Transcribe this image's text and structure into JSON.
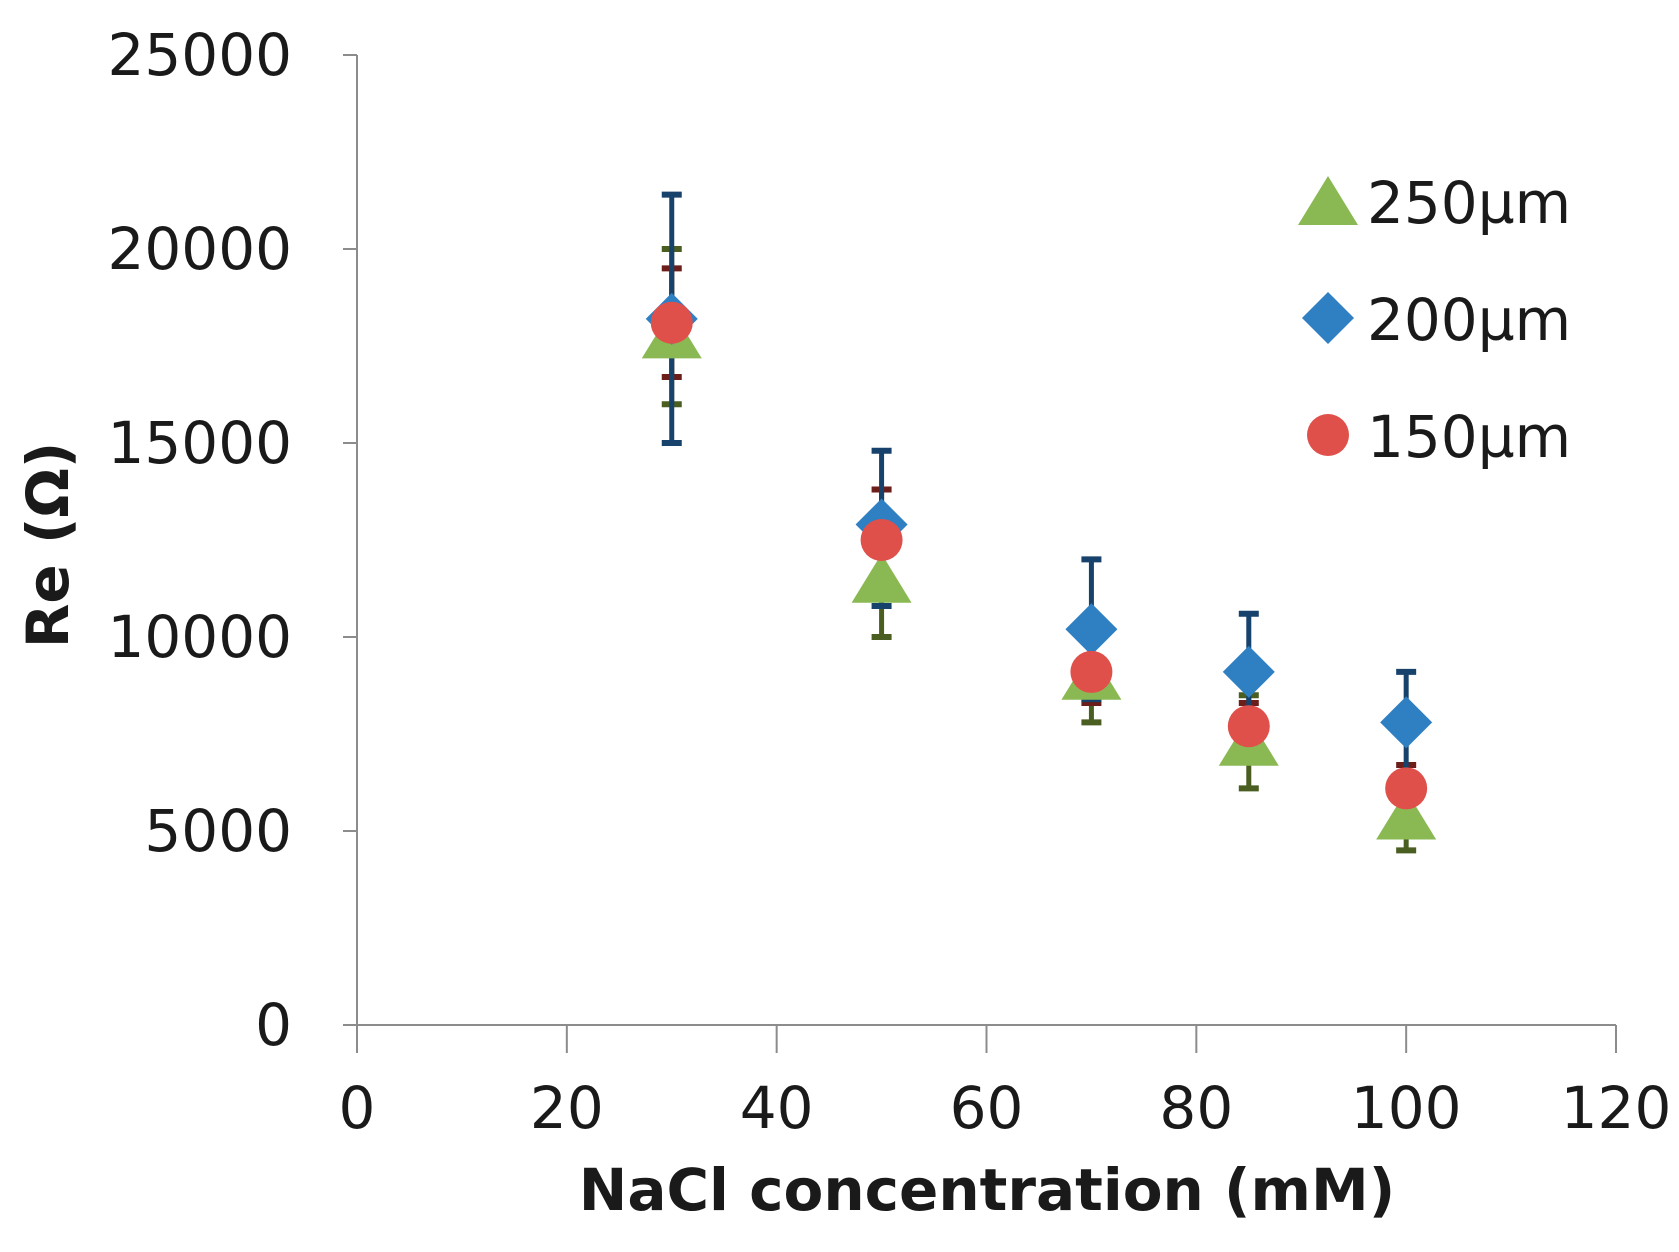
{
  "chart_data": {
    "type": "scatter",
    "title": "",
    "xlabel": "NaCl concentration (mM)",
    "ylabel": "Re (Ω)",
    "xlim": [
      0,
      120
    ],
    "ylim": [
      0,
      25000
    ],
    "xticks": [
      0,
      20,
      40,
      60,
      80,
      100,
      120
    ],
    "yticks": [
      0,
      5000,
      10000,
      15000,
      20000,
      25000
    ],
    "grid": false,
    "legend_position": "top-right",
    "series": [
      {
        "name": "250µm",
        "marker": "triangle",
        "color": "#8ab953",
        "error_color": "#4a5e22",
        "x": [
          30,
          50,
          70,
          85,
          100
        ],
        "y": [
          17800,
          11500,
          9000,
          7300,
          5400
        ],
        "err_low": [
          1800,
          1500,
          1200,
          1200,
          900
        ],
        "err_high": [
          2200,
          1500,
          1200,
          1200,
          900
        ]
      },
      {
        "name": "200µm",
        "marker": "diamond",
        "color": "#2f7fc3",
        "error_color": "#17426b",
        "x": [
          30,
          50,
          70,
          85,
          100
        ],
        "y": [
          18200,
          12900,
          10200,
          9100,
          7800
        ],
        "err_low": [
          3200,
          2100,
          1800,
          1500,
          1300
        ],
        "err_high": [
          3200,
          1900,
          1800,
          1500,
          1300
        ]
      },
      {
        "name": "150µm",
        "marker": "circle",
        "color": "#e0504a",
        "error_color": "#6b1e1a",
        "x": [
          30,
          50,
          70,
          85,
          100
        ],
        "y": [
          18100,
          12500,
          9100,
          7700,
          6100
        ],
        "err_low": [
          1400,
          1300,
          800,
          600,
          600
        ],
        "err_high": [
          1400,
          1300,
          800,
          600,
          600
        ]
      }
    ]
  }
}
